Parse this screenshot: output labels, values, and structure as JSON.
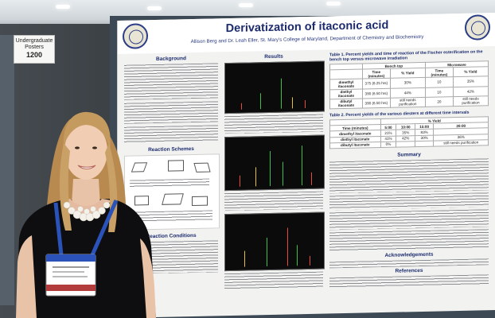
{
  "placard": {
    "line1": "Undergraduate",
    "line2": "Posters",
    "number": "1200"
  },
  "poster": {
    "title": "Derivatization of itaconic acid",
    "authors": "Allison Berg and Dr. Leah Eller, St. Mary's College of Maryland, Department of Chemistry and Biochemistry",
    "sections": {
      "background": "Background",
      "results": "Results",
      "reaction_schemes": "Reaction Schemes",
      "reaction_conditions": "Reaction Conditions",
      "summary": "Summary",
      "acknowledgements": "Acknowledgements",
      "references": "References"
    },
    "table1": {
      "caption": "Table 1. Percent yields and time of reaction of the Fischer esterification on the bench top versus microwave irradiation",
      "group_headers": [
        "Bench top",
        "Microwave"
      ],
      "columns": [
        "Time (minutes)",
        "% Yield",
        "Time (minutes)",
        "% Yield"
      ],
      "rows": [
        {
          "name": "dimethyl itaconate",
          "c1": "375 (6.25 hrs)",
          "c2": "30%",
          "c3": "10",
          "c4": "35%"
        },
        {
          "name": "diethyl itaconate",
          "c1": "390 (6.50 hrs)",
          "c2": "44%",
          "c3": "10",
          "c4": "42%"
        },
        {
          "name": "dibutyl itaconate",
          "c1": "390 (6.50 hrs)",
          "c2": "still needs purification",
          "c3": "20",
          "c4": "still needs purification"
        }
      ]
    },
    "table2": {
      "caption": "Table 2. Percent yields of the various diesters at different time intervals",
      "group_header": "% Yield",
      "time_label": "Time (minutes)",
      "times": [
        "5:00",
        "10:00",
        "15:00",
        "20:00"
      ],
      "rows": [
        {
          "name": "dimethyl itaconate",
          "values": [
            "21%",
            "35%",
            "83%",
            ""
          ]
        },
        {
          "name": "diethyl itaconate",
          "values": [
            "41%",
            "42%",
            "30%",
            "36%"
          ]
        },
        {
          "name": "dibutyl itaconate",
          "values": [
            "0%",
            "",
            "",
            "still needs purification"
          ]
        }
      ]
    }
  },
  "colors": {
    "title_blue": "#1c2b6e",
    "board": "#3d4a56",
    "lanyard": "#2a52b8",
    "hair": "#c59a5e",
    "dress": "#0e0e10"
  }
}
